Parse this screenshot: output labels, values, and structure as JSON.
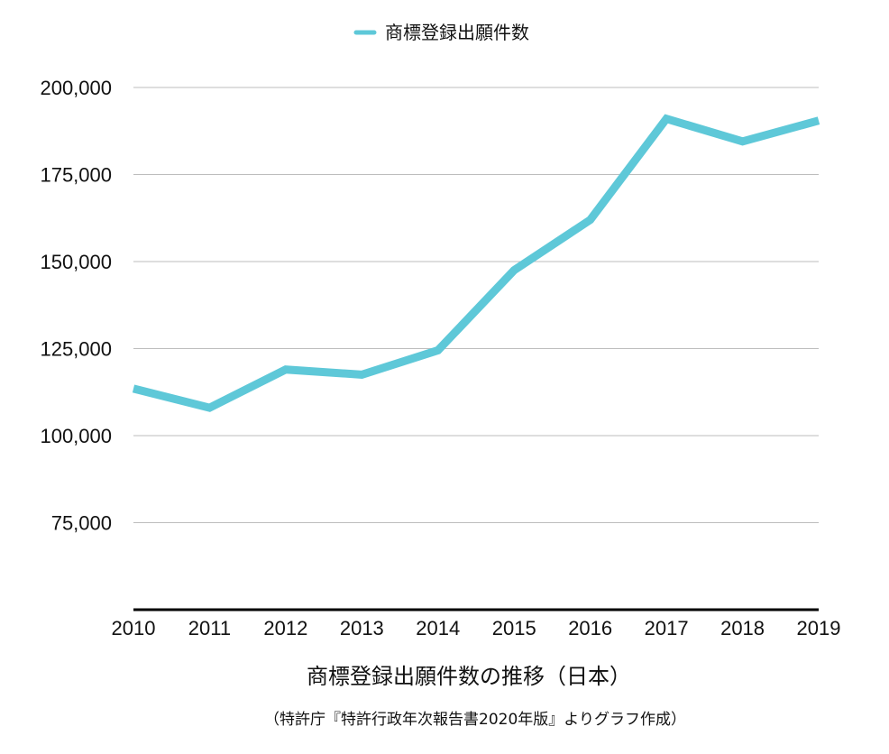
{
  "chart_data": {
    "type": "line",
    "title": "",
    "xlabel": "商標登録出願件数の推移（日本）",
    "ylabel": "",
    "note": "（特許庁『特許行政年次報告書2020年版』よりグラフ作成）",
    "x": [
      "2010",
      "2011",
      "2012",
      "2013",
      "2014",
      "2015",
      "2016",
      "2017",
      "2018",
      "2019"
    ],
    "series": [
      {
        "name": "商標登録出願件数",
        "color": "#5ec8d8",
        "values": [
          113500,
          108000,
          119000,
          117500,
          124500,
          147500,
          162000,
          191000,
          184500,
          190500
        ]
      }
    ],
    "ylim": [
      50000,
      200000
    ],
    "yticks": [
      {
        "value": 75000,
        "label": "75,000"
      },
      {
        "value": 100000,
        "label": "100,000"
      },
      {
        "value": 125000,
        "label": "125,000"
      },
      {
        "value": 150000,
        "label": "150,000"
      },
      {
        "value": 175000,
        "label": "175,000"
      },
      {
        "value": 200000,
        "label": "200,000"
      }
    ],
    "grid": true,
    "legend": "top-center"
  }
}
